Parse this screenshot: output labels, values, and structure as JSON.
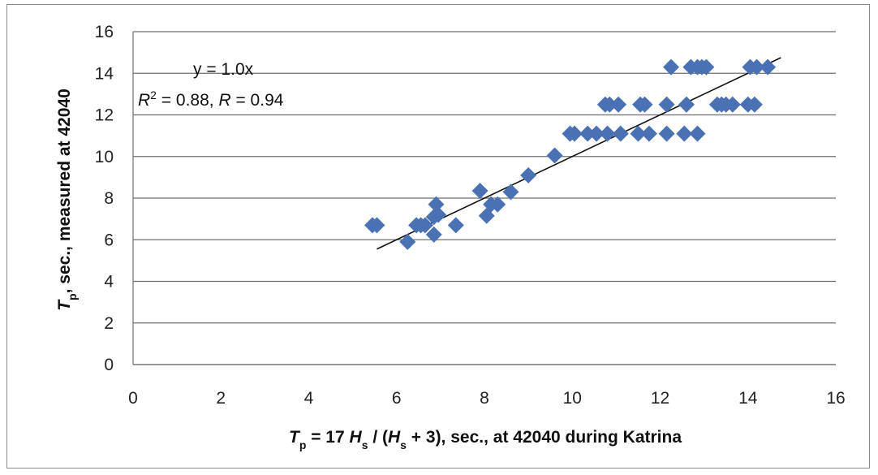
{
  "chart_data": {
    "type": "scatter",
    "title": "",
    "xlabel": {
      "parts": [
        {
          "t": "T",
          "italic": true
        },
        {
          "t": "p",
          "sub": true
        },
        {
          "t": " = 17 "
        },
        {
          "t": "H",
          "italic": true
        },
        {
          "t": "s",
          "sub": true
        },
        {
          "t": " / ("
        },
        {
          "t": "H",
          "italic": true
        },
        {
          "t": "s",
          "sub": true
        },
        {
          "t": " + 3), sec., at 42040 during Katrina"
        }
      ]
    },
    "ylabel": {
      "parts": [
        {
          "t": "T",
          "italic": true
        },
        {
          "t": "p",
          "sub": true
        },
        {
          "t": ", sec., measured at 42040"
        }
      ]
    },
    "xlim": [
      0,
      16
    ],
    "ylim": [
      0,
      16
    ],
    "xticks": [
      0,
      2,
      4,
      6,
      8,
      10,
      12,
      14,
      16
    ],
    "yticks": [
      0,
      2,
      4,
      6,
      8,
      10,
      12,
      14,
      16
    ],
    "grid": "horizontal",
    "marker": "diamond",
    "color": "#4a71b4",
    "trendline": {
      "slope": 1.0,
      "x_range": [
        5.55,
        14.75
      ],
      "color": "#111111"
    },
    "annotations": {
      "equation": "y = 1.0x",
      "r2_parts": [
        {
          "t": "R",
          "italic": true
        },
        {
          "t": "2",
          "sup": true
        },
        {
          "t": " = 0.88, "
        },
        {
          "t": "R",
          "italic": true
        },
        {
          "t": " = 0.94"
        }
      ]
    },
    "series": [
      {
        "x": [
          5.45,
          5.55,
          6.25,
          6.45,
          6.55,
          6.65,
          6.85,
          6.85,
          6.9,
          6.95,
          7.35,
          7.9,
          8.05,
          8.15,
          8.3,
          8.6,
          9.0,
          9.6,
          9.95,
          10.05,
          10.35,
          10.55,
          10.8,
          11.1,
          11.5,
          11.75,
          12.15,
          12.55,
          12.85,
          10.75,
          10.85,
          11.05,
          11.55,
          11.65,
          12.15,
          12.6,
          13.3,
          13.4,
          13.5,
          13.65,
          14.0,
          14.15,
          12.25,
          12.7,
          12.85,
          12.95,
          13.05,
          14.05,
          14.2,
          14.45
        ],
        "y": [
          6.7,
          6.7,
          5.9,
          6.7,
          6.7,
          6.7,
          7.1,
          6.25,
          7.7,
          7.2,
          6.7,
          8.35,
          7.15,
          7.7,
          7.7,
          8.3,
          9.1,
          10.05,
          11.1,
          11.1,
          11.1,
          11.1,
          11.1,
          11.1,
          11.1,
          11.1,
          11.1,
          11.1,
          11.1,
          12.5,
          12.5,
          12.5,
          12.5,
          12.5,
          12.5,
          12.5,
          12.5,
          12.5,
          12.5,
          12.5,
          12.5,
          12.5,
          14.3,
          14.3,
          14.3,
          14.3,
          14.3,
          14.3,
          14.3,
          14.3
        ]
      }
    ]
  }
}
